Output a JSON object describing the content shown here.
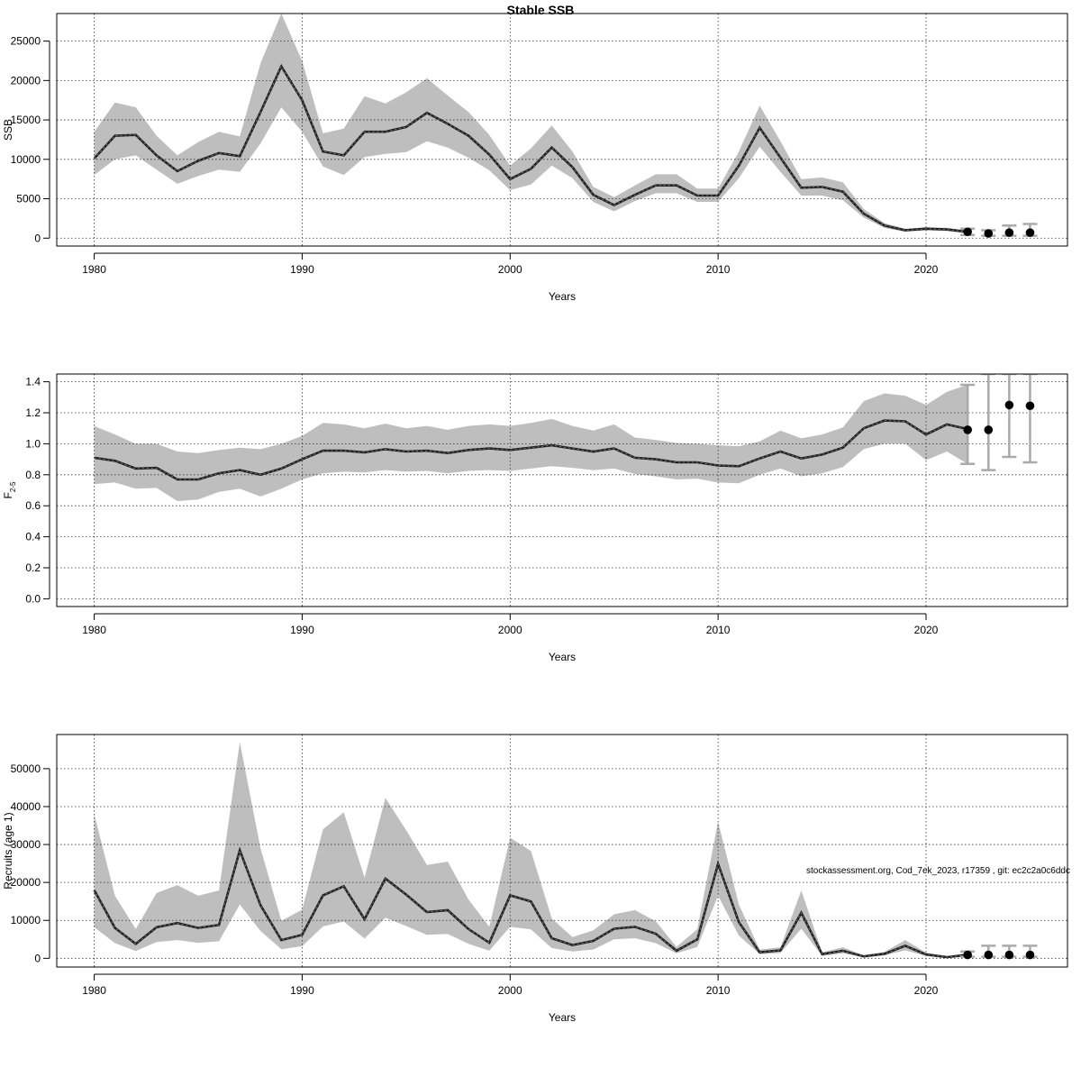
{
  "title": "Stable SSB",
  "footnote": "stockassessment.org, Cod_7ek_2023, r17359 , git: ec2c2a0c6ddc",
  "colors": {
    "band": "#bebebe",
    "line": "#222222",
    "grid": "#333333",
    "error_bar": "#aaaaaa",
    "point": "#000000"
  },
  "chart_data": [
    {
      "type": "line",
      "title": "Stable SSB",
      "xlabel": "Years",
      "ylabel": "SSB",
      "xlim": [
        1978.2,
        2026.8
      ],
      "ylim": [
        -1000,
        28500
      ],
      "xticks": [
        1980,
        1990,
        2000,
        2010,
        2020
      ],
      "yticks": [
        0,
        5000,
        10000,
        15000,
        20000,
        25000
      ],
      "ytick_labels": [
        "0",
        "5000",
        "10000",
        "15000",
        "20000",
        "25000"
      ],
      "grid": true,
      "years": [
        1980,
        1981,
        1982,
        1983,
        1984,
        1985,
        1986,
        1987,
        1988,
        1989,
        1990,
        1991,
        1992,
        1993,
        1994,
        1995,
        1996,
        1997,
        1998,
        1999,
        2000,
        2001,
        2002,
        2003,
        2004,
        2005,
        2006,
        2007,
        2008,
        2009,
        2010,
        2011,
        2012,
        2013,
        2014,
        2015,
        2016,
        2017,
        2018,
        2019,
        2020,
        2021,
        2022
      ],
      "estimate": [
        10100,
        13000,
        13100,
        10500,
        8500,
        9800,
        10800,
        10400,
        16000,
        21800,
        17500,
        11000,
        10500,
        13500,
        13500,
        14100,
        15900,
        14500,
        13000,
        10600,
        7500,
        8800,
        11500,
        9000,
        5500,
        4200,
        5500,
        6700,
        6700,
        5400,
        5400,
        9200,
        14000,
        10200,
        6400,
        6500,
        5900,
        3100,
        1600,
        1000,
        1200,
        1100,
        800
      ],
      "lower": [
        8000,
        10000,
        10500,
        8700,
        6900,
        7900,
        8700,
        8400,
        12000,
        16600,
        13500,
        9100,
        8000,
        10300,
        10700,
        10900,
        12300,
        11500,
        10200,
        8600,
        6100,
        6800,
        9200,
        7600,
        4600,
        3400,
        4700,
        5700,
        5700,
        4600,
        4600,
        7600,
        11600,
        8400,
        5400,
        5400,
        4800,
        2600,
        1300,
        800,
        1000,
        900,
        600
      ],
      "upper": [
        13500,
        17200,
        16600,
        13000,
        10500,
        12200,
        13500,
        12900,
        22200,
        28500,
        22500,
        13300,
        13900,
        18000,
        17100,
        18500,
        20300,
        18100,
        16000,
        13100,
        9200,
        11400,
        14300,
        11000,
        6500,
        5200,
        6700,
        8100,
        8100,
        6300,
        6300,
        11000,
        16800,
        12300,
        7500,
        7700,
        7100,
        3700,
        1900,
        1200,
        1400,
        1300,
        1000
      ],
      "projection": {
        "years": [
          2022,
          2023,
          2024,
          2025
        ],
        "values": [
          800,
          600,
          700,
          700
        ],
        "lower": [
          400,
          300,
          300,
          300
        ],
        "upper": [
          1200,
          1000,
          1600,
          1800
        ]
      }
    },
    {
      "type": "line",
      "title": "",
      "xlabel": "Years",
      "ylabel": "F",
      "ylabel_subscript": "2-5",
      "xlim": [
        1978.2,
        2026.8
      ],
      "ylim": [
        -0.05,
        1.45
      ],
      "xticks": [
        1980,
        1990,
        2000,
        2010,
        2020
      ],
      "yticks": [
        0,
        0.2,
        0.4,
        0.6,
        0.8,
        1,
        1.2,
        1.4
      ],
      "ytick_labels": [
        "0.0",
        "0.2",
        "0.4",
        "0.6",
        "0.8",
        "1.0",
        "1.2",
        "1.4"
      ],
      "grid": true,
      "years": [
        1980,
        1981,
        1982,
        1983,
        1984,
        1985,
        1986,
        1987,
        1988,
        1989,
        1990,
        1991,
        1992,
        1993,
        1994,
        1995,
        1996,
        1997,
        1998,
        1999,
        2000,
        2001,
        2002,
        2003,
        2004,
        2005,
        2006,
        2007,
        2008,
        2009,
        2010,
        2011,
        2012,
        2013,
        2014,
        2015,
        2016,
        2017,
        2018,
        2019,
        2020,
        2021,
        2022
      ],
      "estimate": [
        0.91,
        0.89,
        0.84,
        0.845,
        0.77,
        0.77,
        0.81,
        0.83,
        0.8,
        0.84,
        0.9,
        0.955,
        0.955,
        0.945,
        0.965,
        0.95,
        0.955,
        0.94,
        0.96,
        0.97,
        0.96,
        0.975,
        0.99,
        0.97,
        0.95,
        0.97,
        0.91,
        0.9,
        0.88,
        0.88,
        0.86,
        0.855,
        0.905,
        0.95,
        0.905,
        0.93,
        0.975,
        1.1,
        1.15,
        1.145,
        1.06,
        1.125,
        1.095
      ],
      "lower": [
        0.74,
        0.75,
        0.71,
        0.715,
        0.63,
        0.64,
        0.69,
        0.71,
        0.66,
        0.71,
        0.77,
        0.81,
        0.82,
        0.815,
        0.83,
        0.82,
        0.825,
        0.81,
        0.825,
        0.83,
        0.825,
        0.84,
        0.855,
        0.845,
        0.83,
        0.84,
        0.805,
        0.79,
        0.77,
        0.775,
        0.75,
        0.745,
        0.8,
        0.84,
        0.79,
        0.81,
        0.85,
        0.965,
        1.0,
        1.0,
        0.895,
        0.95,
        0.87
      ],
      "upper": [
        1.115,
        1.06,
        1.0,
        1.0,
        0.95,
        0.94,
        0.96,
        0.975,
        0.965,
        1.0,
        1.05,
        1.135,
        1.125,
        1.1,
        1.13,
        1.1,
        1.115,
        1.09,
        1.115,
        1.125,
        1.115,
        1.135,
        1.16,
        1.115,
        1.085,
        1.125,
        1.04,
        1.025,
        1.005,
        1.0,
        0.99,
        0.985,
        1.015,
        1.085,
        1.035,
        1.06,
        1.105,
        1.275,
        1.325,
        1.31,
        1.25,
        1.335,
        1.38
      ],
      "projection": {
        "years": [
          2022,
          2023,
          2024,
          2025
        ],
        "values": [
          1.09,
          1.09,
          1.25,
          1.245
        ],
        "lower": [
          0.87,
          0.83,
          0.915,
          0.88
        ],
        "upper": [
          1.38,
          1.45,
          1.45,
          1.45
        ]
      }
    },
    {
      "type": "line",
      "title": "",
      "xlabel": "Years",
      "ylabel": "Recruits (age 1)",
      "xlim": [
        1978.2,
        2026.8
      ],
      "ylim": [
        -2300,
        59000
      ],
      "xticks": [
        1980,
        1990,
        2000,
        2010,
        2020
      ],
      "yticks": [
        0,
        10000,
        20000,
        30000,
        40000,
        50000
      ],
      "ytick_labels": [
        "0",
        "10000",
        "20000",
        "30000",
        "40000",
        "50000"
      ],
      "grid": true,
      "years": [
        1980,
        1981,
        1982,
        1983,
        1984,
        1985,
        1986,
        1987,
        1988,
        1989,
        1990,
        1991,
        1992,
        1993,
        1994,
        1995,
        1996,
        1997,
        1998,
        1999,
        2000,
        2001,
        2002,
        2003,
        2004,
        2005,
        2006,
        2007,
        2008,
        2009,
        2010,
        2011,
        2012,
        2013,
        2014,
        2015,
        2016,
        2017,
        2018,
        2019,
        2020,
        2021,
        2022
      ],
      "estimate": [
        18000,
        8000,
        3800,
        8200,
        9300,
        8000,
        8800,
        28500,
        14000,
        4800,
        6200,
        16600,
        19000,
        10300,
        21000,
        16800,
        12200,
        12700,
        7700,
        4100,
        16600,
        15000,
        5300,
        3500,
        4600,
        7800,
        8300,
        6500,
        2000,
        5000,
        24900,
        9500,
        1600,
        2100,
        12000,
        1100,
        2000,
        500,
        1200,
        3300,
        1000,
        300,
        900
      ],
      "lower": [
        8200,
        4000,
        1900,
        4300,
        4800,
        4100,
        4500,
        14200,
        7200,
        2400,
        3200,
        8400,
        9700,
        5200,
        10700,
        8500,
        6200,
        6400,
        3800,
        2000,
        8300,
        7600,
        2700,
        1800,
        2300,
        5000,
        5300,
        4000,
        1300,
        3000,
        16500,
        6000,
        1100,
        1400,
        7800,
        600,
        1300,
        300,
        800,
        2100,
        600,
        150,
        500
      ],
      "upper": [
        38000,
        16500,
        7700,
        17200,
        19300,
        16500,
        17900,
        57000,
        29000,
        9900,
        12800,
        34000,
        38500,
        21300,
        42300,
        33800,
        24600,
        25500,
        15500,
        8300,
        31800,
        28300,
        10500,
        5600,
        7400,
        11600,
        12700,
        9800,
        3000,
        7700,
        36000,
        14200,
        2300,
        2900,
        17900,
        1600,
        2900,
        800,
        1700,
        4800,
        1500,
        500,
        1500
      ],
      "projection": {
        "years": [
          2022,
          2023,
          2024,
          2025
        ],
        "values": [
          900,
          900,
          900,
          900
        ],
        "lower": [
          400,
          400,
          400,
          400
        ],
        "upper": [
          1800,
          3300,
          3300,
          3300
        ]
      }
    }
  ]
}
